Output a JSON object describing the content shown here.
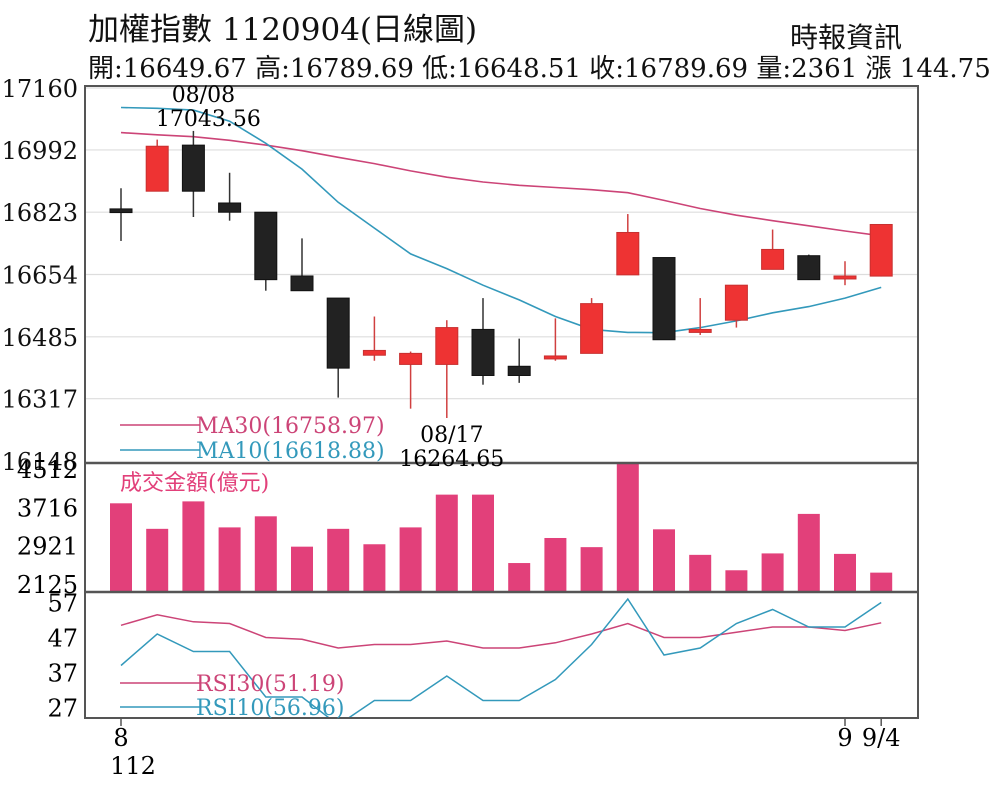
{
  "header": {
    "title": "加權指數 1120904(日線圖)",
    "source": "時報資訊",
    "stats": "開:16649.67 高:16789.69 低:16648.51 收:16789.69 量:2361 漲 144.75"
  },
  "colors": {
    "up": "#ee3333",
    "down": "#222222",
    "ma30": "#cc4477",
    "ma10": "#3399bb",
    "volume": "#e2407a",
    "grid": "#dddddd",
    "frame": "#555555"
  },
  "chart_data": [
    {
      "type": "candlestick",
      "ylim": [
        16148,
        17160
      ],
      "yticks": [
        17160,
        16992,
        16823,
        16654,
        16485,
        16317,
        16148
      ],
      "annotations": [
        {
          "date_label": "08/08",
          "value_label": "17043.56",
          "value": 17043.56,
          "kind": "high",
          "bar": 3
        },
        {
          "date_label": "08/17",
          "value_label": "16264.65",
          "value": 16264.65,
          "kind": "low",
          "bar": 10
        }
      ],
      "candles": [
        {
          "open": 16832,
          "close": 16822,
          "high": 16888,
          "low": 16745
        },
        {
          "open": 16880,
          "close": 17002,
          "high": 17020,
          "low": 16880
        },
        {
          "open": 17005,
          "close": 16880,
          "high": 17043.56,
          "low": 16810
        },
        {
          "open": 16848,
          "close": 16823,
          "high": 16930,
          "low": 16800
        },
        {
          "open": 16823,
          "close": 16640,
          "high": 16823,
          "low": 16610
        },
        {
          "open": 16650,
          "close": 16610,
          "high": 16752,
          "low": 16610
        },
        {
          "open": 16590,
          "close": 16400,
          "high": 16590,
          "low": 16320
        },
        {
          "open": 16435,
          "close": 16448,
          "high": 16540,
          "low": 16420
        },
        {
          "open": 16410,
          "close": 16440,
          "high": 16445,
          "low": 16290
        },
        {
          "open": 16410,
          "close": 16510,
          "high": 16530,
          "low": 16264.65
        },
        {
          "open": 16505,
          "close": 16380,
          "high": 16590,
          "low": 16355
        },
        {
          "open": 16405,
          "close": 16380,
          "high": 16480,
          "low": 16360
        },
        {
          "open": 16428,
          "close": 16433,
          "high": 16535,
          "low": 16420
        },
        {
          "open": 16440,
          "close": 16575,
          "high": 16590,
          "low": 16440
        },
        {
          "open": 16653,
          "close": 16768,
          "high": 16818,
          "low": 16653
        },
        {
          "open": 16700,
          "close": 16477,
          "high": 16700,
          "low": 16477
        },
        {
          "open": 16500,
          "close": 16505,
          "high": 16590,
          "low": 16490
        },
        {
          "open": 16530,
          "close": 16625,
          "high": 16625,
          "low": 16510
        },
        {
          "open": 16668,
          "close": 16722,
          "high": 16776,
          "low": 16668
        },
        {
          "open": 16705,
          "close": 16640,
          "high": 16708,
          "low": 16640
        },
        {
          "open": 16643,
          "close": 16650,
          "high": 16690,
          "low": 16625
        },
        {
          "open": 16649.67,
          "close": 16789.69,
          "high": 16789.69,
          "low": 16648.51
        }
      ],
      "series": [
        {
          "name": "MA30(16758.97)",
          "color_key": "ma30",
          "values": [
            17039,
            17033,
            17028,
            17018,
            17005,
            16990,
            16972,
            16955,
            16935,
            16918,
            16905,
            16896,
            16890,
            16884,
            16876,
            16855,
            16833,
            16815,
            16800,
            16786,
            16772,
            16759
          ]
        },
        {
          "name": "MA10(16618.88)",
          "color_key": "ma10",
          "values": [
            17107,
            17105,
            17100,
            17070,
            17010,
            16940,
            16850,
            16780,
            16710,
            16670,
            16625,
            16585,
            16540,
            16505,
            16497,
            16496,
            16510,
            16528,
            16550,
            16567,
            16590,
            16619
          ]
        }
      ]
    },
    {
      "type": "bar",
      "title": "成交金額(億元)",
      "ylim": [
        2125,
        4512
      ],
      "yticks": [
        4512,
        3716,
        2921,
        2125
      ],
      "values": [
        3800,
        3270,
        3840,
        3300,
        3530,
        2900,
        3270,
        2950,
        3300,
        3980,
        3980,
        2560,
        3080,
        2890,
        4900,
        3260,
        2730,
        2410,
        2760,
        3580,
        2750,
        2361
      ]
    },
    {
      "type": "line",
      "ylim": [
        24,
        60
      ],
      "yticks": [
        57,
        47,
        37,
        27
      ],
      "series": [
        {
          "name": "RSI30(51.19)",
          "color_key": "ma30",
          "values": [
            50.5,
            53.5,
            51.5,
            51,
            47,
            46.5,
            44,
            45,
            45,
            46,
            44,
            44,
            45.5,
            48,
            51,
            47,
            47,
            48.5,
            50,
            50,
            49,
            51.2
          ]
        },
        {
          "name": "RSI10(56.96)",
          "color_key": "ma10",
          "values": [
            39,
            48,
            43,
            43,
            30,
            30,
            22,
            29,
            29,
            36,
            29,
            29,
            35,
            45,
            58,
            42,
            44,
            51,
            55,
            50,
            50,
            57
          ]
        }
      ]
    }
  ],
  "xaxis": {
    "labels": [
      {
        "bar": 1,
        "text": "8",
        "sub": "112"
      },
      {
        "bar": 21,
        "text": "9",
        "sub": ""
      },
      {
        "bar": 22,
        "text": "9/4",
        "sub": ""
      }
    ]
  }
}
